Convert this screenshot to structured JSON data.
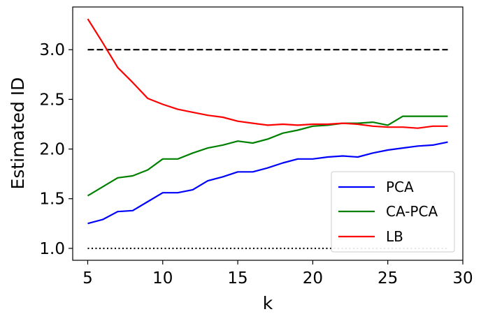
{
  "chart_data": {
    "type": "line",
    "title": "",
    "xlabel": "k",
    "ylabel": "Estimated ID",
    "xlim": [
      4.0,
      30.0
    ],
    "ylim": [
      0.88,
      3.43
    ],
    "xticks": [
      5,
      10,
      15,
      20,
      25,
      30
    ],
    "yticks": [
      1.0,
      1.5,
      2.0,
      2.5,
      3.0
    ],
    "xtick_labels": [
      "5",
      "10",
      "15",
      "20",
      "25",
      "30"
    ],
    "ytick_labels": [
      "1.0",
      "1.5",
      "2.0",
      "2.5",
      "3.0"
    ],
    "grid": false,
    "legend_position": "lower-right",
    "x": [
      5,
      6,
      7,
      8,
      9,
      10,
      11,
      12,
      13,
      14,
      15,
      16,
      17,
      18,
      19,
      20,
      21,
      22,
      23,
      24,
      25,
      26,
      27,
      28,
      29
    ],
    "series": [
      {
        "name": "PCA",
        "color": "#0000ff",
        "values": [
          1.25,
          1.29,
          1.37,
          1.38,
          1.47,
          1.56,
          1.56,
          1.59,
          1.68,
          1.72,
          1.77,
          1.77,
          1.81,
          1.86,
          1.9,
          1.9,
          1.92,
          1.93,
          1.92,
          1.96,
          1.99,
          2.01,
          2.03,
          2.04,
          2.07
        ]
      },
      {
        "name": "CA-PCA",
        "color": "#008000",
        "values": [
          1.53,
          1.62,
          1.71,
          1.73,
          1.79,
          1.9,
          1.9,
          1.96,
          2.01,
          2.04,
          2.08,
          2.06,
          2.1,
          2.16,
          2.19,
          2.23,
          2.24,
          2.26,
          2.26,
          2.27,
          2.24,
          2.33,
          2.33,
          2.33,
          2.33
        ]
      },
      {
        "name": "LB",
        "color": "#ff0000",
        "values": [
          3.31,
          3.07,
          2.82,
          2.67,
          2.51,
          2.45,
          2.4,
          2.37,
          2.34,
          2.32,
          2.28,
          2.26,
          2.24,
          2.25,
          2.24,
          2.25,
          2.25,
          2.26,
          2.25,
          2.23,
          2.22,
          2.22,
          2.21,
          2.23,
          2.23
        ]
      }
    ],
    "reference_lines": [
      {
        "y": 3.0,
        "x_range": [
          5,
          29
        ],
        "style": "dashed",
        "color": "#000000"
      },
      {
        "y": 1.0,
        "x_range": [
          5,
          29
        ],
        "style": "dotted",
        "color": "#000000"
      }
    ]
  }
}
